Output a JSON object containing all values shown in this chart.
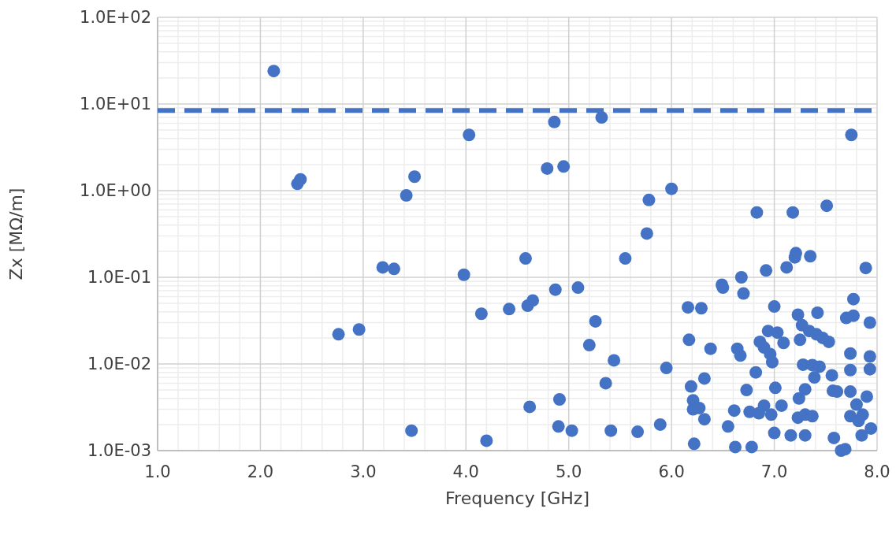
{
  "chart_data": {
    "type": "scatter",
    "xlabel": "Frequency [GHz]",
    "ylabel": "Zx [MΩ/m]",
    "log": "y",
    "grid": true,
    "marker": "circle",
    "xlim": [
      1,
      8
    ],
    "xticks": [
      {
        "value": 1,
        "label": "1.0"
      },
      {
        "value": 2,
        "label": "2.0"
      },
      {
        "value": 3,
        "label": "3.0"
      },
      {
        "value": 4,
        "label": "4.0"
      },
      {
        "value": 5,
        "label": "5.0"
      },
      {
        "value": 6,
        "label": "6.0"
      },
      {
        "value": 7,
        "label": "7.0"
      },
      {
        "value": 8,
        "label": "8.0"
      }
    ],
    "ylim": [
      0.001,
      100
    ],
    "yticks": [
      {
        "value": 0.001,
        "label": "1.0E-03"
      },
      {
        "value": 0.01,
        "label": "1.0E-02"
      },
      {
        "value": 0.1,
        "label": "1.0E-01"
      },
      {
        "value": 1,
        "label": "1.0E+00"
      },
      {
        "value": 10,
        "label": "1.0E+01"
      },
      {
        "value": 100,
        "label": "1.0E+02"
      }
    ],
    "ref_lines": [
      {
        "axis": "y",
        "value": 8.4,
        "color": "#4472c4",
        "line_style": "dashed"
      }
    ],
    "series": [
      {
        "color": "#4472c4",
        "x": [
          2.13,
          2.36,
          2.39,
          2.76,
          2.96,
          3.19,
          3.3,
          3.42,
          3.5,
          3.47,
          3.98,
          4.03,
          4.15,
          4.2,
          4.42,
          4.58,
          4.6,
          4.65,
          4.62,
          4.79,
          4.87,
          4.86,
          4.91,
          4.9,
          4.95,
          5.03,
          5.09,
          5.2,
          5.26,
          5.32,
          5.44,
          5.36,
          5.41,
          5.55,
          5.67,
          5.78,
          5.76,
          5.89,
          5.95,
          6.0,
          6.16,
          6.17,
          6.19,
          6.21,
          6.21,
          6.22,
          6.27,
          6.29,
          6.32,
          6.32,
          6.38,
          6.49,
          6.5,
          6.55,
          6.61,
          6.62,
          6.64,
          6.67,
          6.68,
          6.7,
          6.73,
          6.76,
          6.78,
          6.82,
          6.83,
          6.85,
          6.86,
          6.9,
          6.9,
          6.92,
          6.94,
          6.96,
          6.97,
          6.98,
          7.0,
          7.0,
          7.01,
          7.03,
          7.07,
          7.09,
          7.12,
          7.16,
          7.18,
          7.21,
          7.2,
          7.23,
          7.23,
          7.24,
          7.25,
          7.27,
          7.28,
          7.3,
          7.3,
          7.3,
          7.34,
          7.35,
          7.37,
          7.37,
          7.39,
          7.41,
          7.42,
          7.44,
          7.47,
          7.53,
          7.51,
          7.56,
          7.57,
          7.58,
          7.61,
          7.65,
          7.69,
          7.7,
          7.74,
          7.74,
          7.74,
          7.74,
          7.75,
          7.77,
          7.77,
          7.8,
          7.82,
          7.85,
          7.86,
          7.9,
          7.89,
          7.93,
          7.93,
          7.93,
          7.94
        ],
        "values": [
          24,
          1.2,
          1.35,
          0.022,
          0.025,
          0.13,
          0.125,
          0.88,
          1.45,
          0.0017,
          0.107,
          4.4,
          0.038,
          0.0013,
          0.043,
          0.165,
          0.047,
          0.054,
          0.0032,
          1.8,
          0.072,
          6.2,
          0.0039,
          0.0019,
          1.9,
          0.0017,
          0.076,
          0.0165,
          0.031,
          7,
          0.011,
          0.006,
          0.0017,
          0.165,
          0.00165,
          0.78,
          0.32,
          0.002,
          0.009,
          1.05,
          0.045,
          0.019,
          0.0055,
          0.003,
          0.0038,
          0.0012,
          0.0031,
          0.044,
          0.0068,
          0.0023,
          0.015,
          0.082,
          0.076,
          0.0019,
          0.0029,
          0.0011,
          0.015,
          0.0125,
          0.1,
          0.065,
          0.005,
          0.0028,
          0.0011,
          0.008,
          0.56,
          0.0027,
          0.018,
          0.0155,
          0.0033,
          0.12,
          0.024,
          0.013,
          0.0026,
          0.0105,
          0.046,
          0.0016,
          0.0053,
          0.023,
          0.0033,
          0.0175,
          0.13,
          0.0015,
          0.56,
          0.19,
          0.17,
          0.037,
          0.0024,
          0.004,
          0.019,
          0.028,
          0.0098,
          0.0051,
          0.0026,
          0.0015,
          0.024,
          0.175,
          0.0097,
          0.0025,
          0.007,
          0.022,
          0.039,
          0.0093,
          0.02,
          0.018,
          0.67,
          0.0074,
          0.0049,
          0.0014,
          0.0048,
          0.001,
          0.00104,
          0.034,
          0.0132,
          0.0085,
          0.0048,
          0.0025,
          4.4,
          0.056,
          0.036,
          0.0034,
          0.0022,
          0.0015,
          0.0026,
          0.0042,
          0.128,
          0.03,
          0.0122,
          0.0087,
          0.0018
        ]
      }
    ]
  }
}
